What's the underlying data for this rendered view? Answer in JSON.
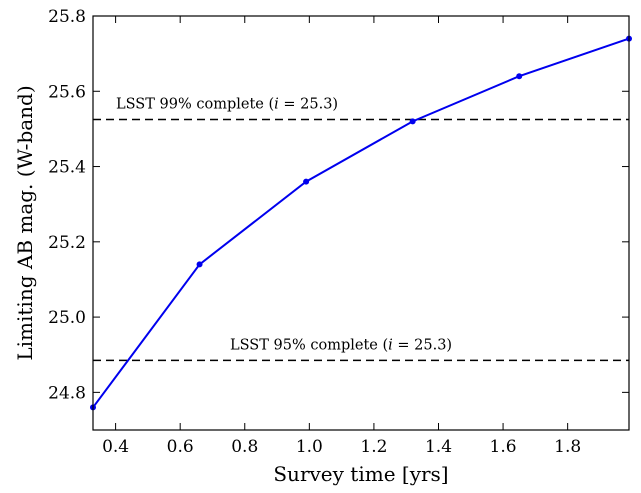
{
  "chart_data": {
    "type": "line",
    "title": "",
    "xlabel": "Survey time [yrs]",
    "ylabel": "Limiting AB mag. (W-band)",
    "xlim": [
      0.33,
      1.99
    ],
    "ylim": [
      24.7,
      25.8
    ],
    "xticks": [
      0.4,
      0.6,
      0.8,
      1.0,
      1.2,
      1.4,
      1.6,
      1.8
    ],
    "xtick_labels": [
      "0.4",
      "0.6",
      "0.8",
      "1.0",
      "1.2",
      "1.4",
      "1.6",
      "1.8"
    ],
    "yticks": [
      24.8,
      25.0,
      25.2,
      25.4,
      25.6,
      25.8
    ],
    "ytick_labels": [
      "24.8",
      "25.0",
      "25.2",
      "25.4",
      "25.6",
      "25.8"
    ],
    "grid": false,
    "series": [
      {
        "color": "#0000ee",
        "x": [
          0.33,
          0.66,
          0.99,
          1.32,
          1.65,
          1.99
        ],
        "y": [
          24.76,
          25.14,
          25.36,
          25.52,
          25.64,
          25.74
        ]
      }
    ],
    "reference_lines": [
      {
        "y": 25.525,
        "label_main": "LSST 99% complete (",
        "label_var": "i",
        "label_rest": " = 25.3)"
      },
      {
        "y": 24.885,
        "label_main": "LSST 95% complete (",
        "label_var": "i",
        "label_rest": " = 25.3)"
      }
    ]
  }
}
